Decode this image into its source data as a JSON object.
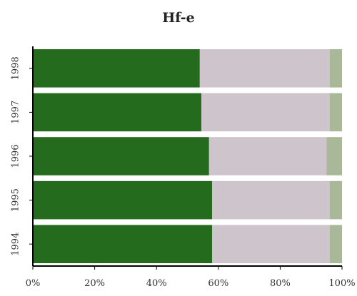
{
  "chart_data": {
    "type": "bar",
    "orientation": "horizontal",
    "stacked": "percent",
    "title": "Hf-e",
    "xlabel": "",
    "ylabel": "",
    "categories": [
      "1998",
      "1997",
      "1996",
      "1995",
      "1994"
    ],
    "series": [
      {
        "color": "#256b1e",
        "values": [
          54,
          54.5,
          57,
          58,
          58
        ]
      },
      {
        "color": "#cdc4cc",
        "values": [
          42,
          41.5,
          38,
          38,
          38
        ]
      },
      {
        "color": "#a8b898",
        "values": [
          4,
          4,
          5,
          4,
          4
        ]
      }
    ],
    "xlim": [
      0,
      100
    ],
    "x_ticks": [
      "0%",
      "20%",
      "40%",
      "60%",
      "80%",
      "100%"
    ],
    "grid": false,
    "legend": "none"
  }
}
